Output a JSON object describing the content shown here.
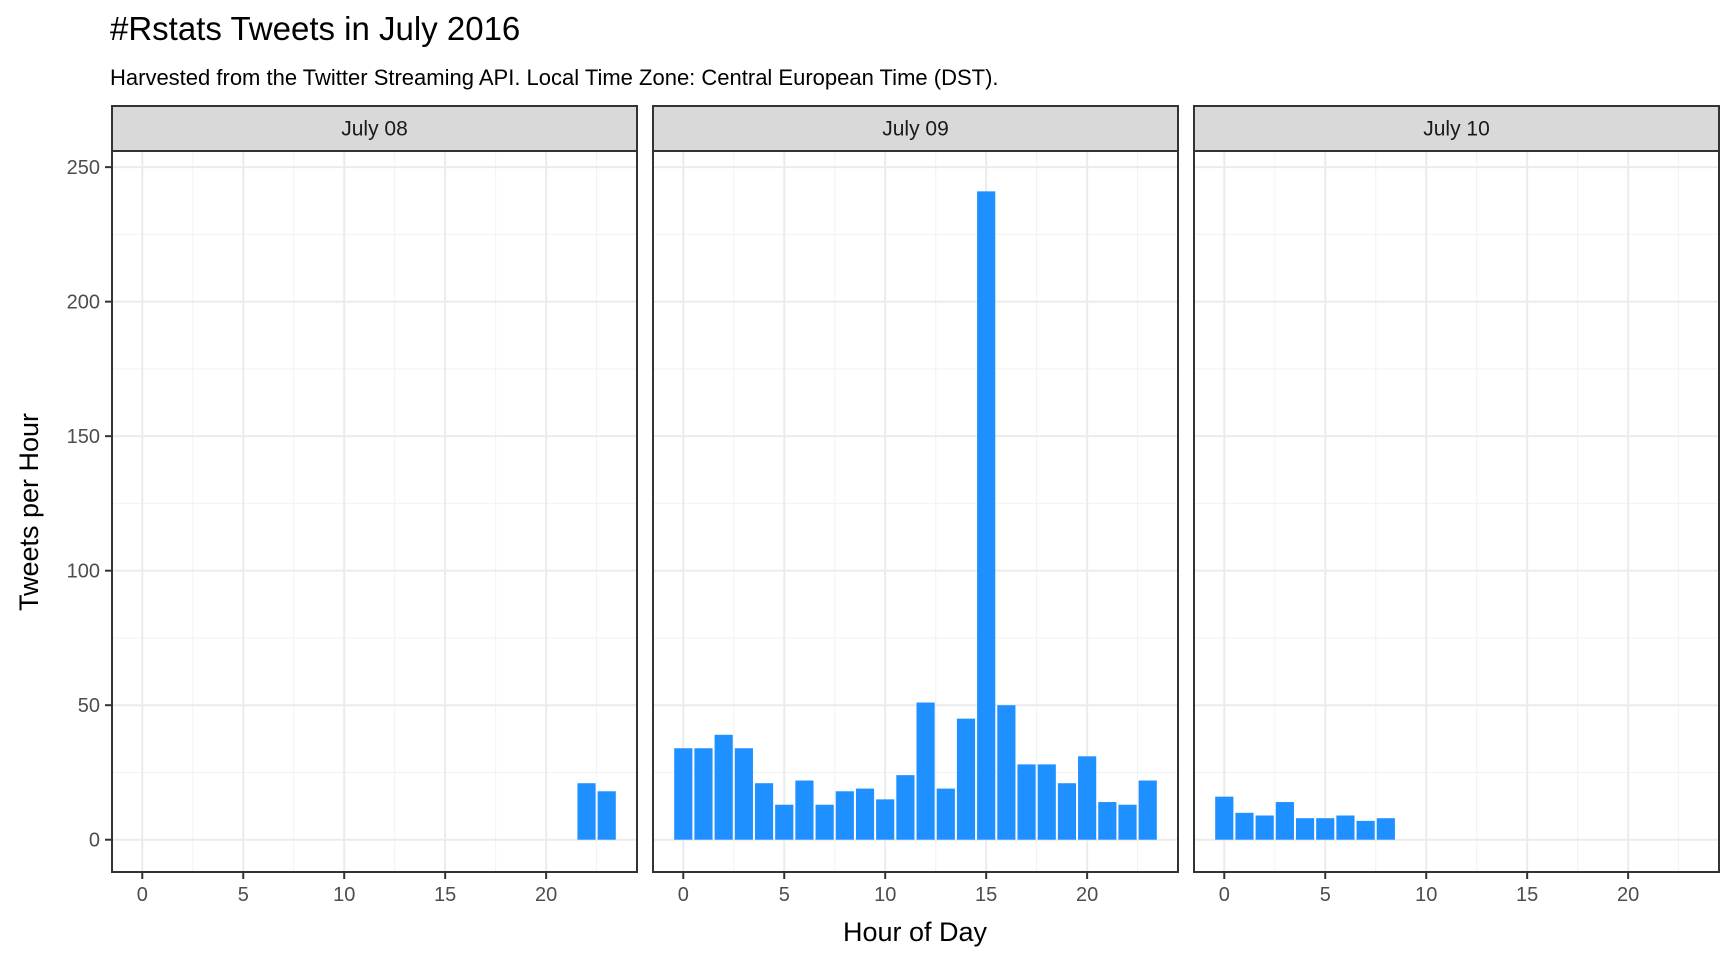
{
  "chart_data": {
    "type": "bar",
    "title": "#Rstats Tweets in July 2016",
    "subtitle": "Harvested from the Twitter Streaming API. Local Time Zone: Central European Time (DST).",
    "xlabel": "Hour of Day",
    "ylabel": "Tweets per Hour",
    "xlim": [
      -1.5,
      24.5
    ],
    "ylim": [
      -12,
      256
    ],
    "x_ticks": [
      0,
      5,
      10,
      15,
      20
    ],
    "y_ticks": [
      0,
      50,
      100,
      150,
      200,
      250
    ],
    "grid": true,
    "bar_color": "#1e90ff",
    "panels": [
      {
        "label": "July 08",
        "hours": [
          22,
          23
        ],
        "values": [
          21,
          18
        ]
      },
      {
        "label": "July 09",
        "hours": [
          0,
          1,
          2,
          3,
          4,
          5,
          6,
          7,
          8,
          9,
          10,
          11,
          12,
          13,
          14,
          15,
          16,
          17,
          18,
          19,
          20,
          21,
          22,
          23
        ],
        "values": [
          34,
          34,
          39,
          34,
          21,
          13,
          22,
          13,
          18,
          19,
          15,
          24,
          51,
          19,
          45,
          241,
          50,
          28,
          28,
          21,
          31,
          14,
          13,
          22
        ]
      },
      {
        "label": "July 10",
        "hours": [
          0,
          1,
          2,
          3,
          4,
          5,
          6,
          7,
          8
        ],
        "values": [
          16,
          10,
          9,
          14,
          8,
          8,
          9,
          7,
          8
        ]
      }
    ]
  }
}
